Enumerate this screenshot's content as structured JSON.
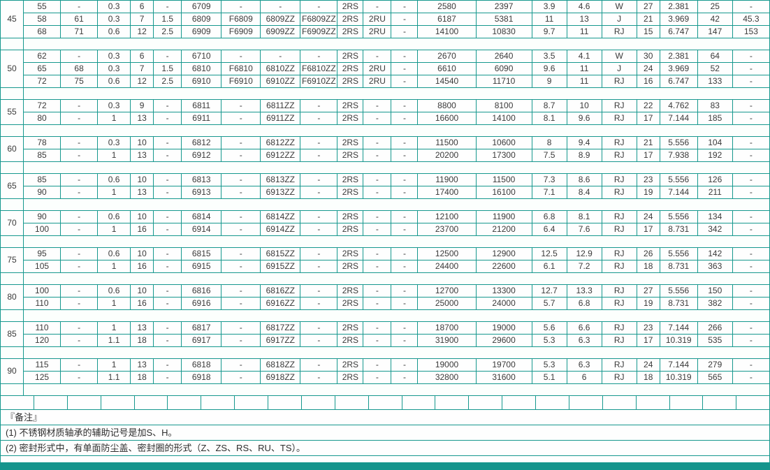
{
  "colors": {
    "border": "#16988e",
    "page_bg": "#14948c",
    "cell_bg": "#fefefe",
    "text": "#3a3a3a"
  },
  "table": {
    "groups": [
      {
        "label": "45",
        "rows": [
          [
            "55",
            "-",
            "0.3",
            "6",
            "-",
            "6709",
            "-",
            "-",
            "-",
            "2RS",
            "-",
            "-",
            "2580",
            "2397",
            "3.9",
            "4.6",
            "W",
            "27",
            "2.381",
            "25",
            "-"
          ],
          [
            "58",
            "61",
            "0.3",
            "7",
            "1.5",
            "6809",
            "F6809",
            "6809ZZ",
            "F6809ZZ",
            "2RS",
            "2RU",
            "-",
            "6187",
            "5381",
            "11",
            "13",
            "J",
            "21",
            "3.969",
            "42",
            "45.3"
          ],
          [
            "68",
            "71",
            "0.6",
            "12",
            "2.5",
            "6909",
            "F6909",
            "6909ZZ",
            "F6909ZZ",
            "2RS",
            "2RU",
            "-",
            "14100",
            "10830",
            "9.7",
            "11",
            "RJ",
            "15",
            "6.747",
            "147",
            "153"
          ]
        ]
      },
      {
        "label": "50",
        "rows": [
          [
            "62",
            "-",
            "0.3",
            "6",
            "-",
            "6710",
            "-",
            "-",
            "-",
            "2RS",
            "-",
            "-",
            "2670",
            "2640",
            "3.5",
            "4.1",
            "W",
            "30",
            "2.381",
            "64",
            "-"
          ],
          [
            "65",
            "68",
            "0.3",
            "7",
            "1.5",
            "6810",
            "F6810",
            "6810ZZ",
            "F6810ZZ",
            "2RS",
            "2RU",
            "-",
            "6610",
            "6090",
            "9.6",
            "11",
            "J",
            "24",
            "3.969",
            "52",
            "-"
          ],
          [
            "72",
            "75",
            "0.6",
            "12",
            "2.5",
            "6910",
            "F6910",
            "6910ZZ",
            "F6910ZZ",
            "2RS",
            "2RU",
            "-",
            "14540",
            "11710",
            "9",
            "11",
            "RJ",
            "16",
            "6.747",
            "133",
            "-"
          ]
        ]
      },
      {
        "label": "55",
        "rows": [
          [
            "72",
            "-",
            "0.3",
            "9",
            "-",
            "6811",
            "-",
            "6811ZZ",
            "-",
            "2RS",
            "-",
            "-",
            "8800",
            "8100",
            "8.7",
            "10",
            "RJ",
            "22",
            "4.762",
            "83",
            "-"
          ],
          [
            "80",
            "-",
            "1",
            "13",
            "-",
            "6911",
            "-",
            "6911ZZ",
            "-",
            "2RS",
            "-",
            "-",
            "16600",
            "14100",
            "8.1",
            "9.6",
            "RJ",
            "17",
            "7.144",
            "185",
            "-"
          ]
        ]
      },
      {
        "label": "60",
        "rows": [
          [
            "78",
            "-",
            "0.3",
            "10",
            "-",
            "6812",
            "-",
            "6812ZZ",
            "-",
            "2RS",
            "-",
            "-",
            "11500",
            "10600",
            "8",
            "9.4",
            "RJ",
            "21",
            "5.556",
            "104",
            "-"
          ],
          [
            "85",
            "-",
            "1",
            "13",
            "-",
            "6912",
            "-",
            "6912ZZ",
            "-",
            "2RS",
            "-",
            "-",
            "20200",
            "17300",
            "7.5",
            "8.9",
            "RJ",
            "17",
            "7.938",
            "192",
            "-"
          ]
        ]
      },
      {
        "label": "65",
        "rows": [
          [
            "85",
            "-",
            "0.6",
            "10",
            "-",
            "6813",
            "-",
            "6813ZZ",
            "-",
            "2RS",
            "-",
            "-",
            "11900",
            "11500",
            "7.3",
            "8.6",
            "RJ",
            "23",
            "5.556",
            "126",
            "-"
          ],
          [
            "90",
            "-",
            "1",
            "13",
            "-",
            "6913",
            "-",
            "6913ZZ",
            "-",
            "2RS",
            "-",
            "-",
            "17400",
            "16100",
            "7.1",
            "8.4",
            "RJ",
            "19",
            "7.144",
            "211",
            "-"
          ]
        ]
      },
      {
        "label": "70",
        "rows": [
          [
            "90",
            "-",
            "0.6",
            "10",
            "-",
            "6814",
            "-",
            "6814ZZ",
            "-",
            "2RS",
            "-",
            "-",
            "12100",
            "11900",
            "6.8",
            "8.1",
            "RJ",
            "24",
            "5.556",
            "134",
            "-"
          ],
          [
            "100",
            "-",
            "1",
            "16",
            "-",
            "6914",
            "-",
            "6914ZZ",
            "-",
            "2RS",
            "-",
            "-",
            "23700",
            "21200",
            "6.4",
            "7.6",
            "RJ",
            "17",
            "8.731",
            "342",
            "-"
          ]
        ]
      },
      {
        "label": "75",
        "rows": [
          [
            "95",
            "-",
            "0.6",
            "10",
            "-",
            "6815",
            "-",
            "6815ZZ",
            "-",
            "2RS",
            "-",
            "-",
            "12500",
            "12900",
            "12.5",
            "12.9",
            "RJ",
            "26",
            "5.556",
            "142",
            "-"
          ],
          [
            "105",
            "-",
            "1",
            "16",
            "-",
            "6915",
            "-",
            "6915ZZ",
            "-",
            "2RS",
            "-",
            "-",
            "24400",
            "22600",
            "6.1",
            "7.2",
            "RJ",
            "18",
            "8.731",
            "363",
            "-"
          ]
        ]
      },
      {
        "label": "80",
        "rows": [
          [
            "100",
            "-",
            "0.6",
            "10",
            "-",
            "6816",
            "-",
            "6816ZZ",
            "-",
            "2RS",
            "-",
            "-",
            "12700",
            "13300",
            "12.7",
            "13.3",
            "RJ",
            "27",
            "5.556",
            "150",
            "-"
          ],
          [
            "110",
            "-",
            "1",
            "16",
            "-",
            "6916",
            "-",
            "6916ZZ",
            "-",
            "2RS",
            "-",
            "-",
            "25000",
            "24000",
            "5.7",
            "6.8",
            "RJ",
            "19",
            "8.731",
            "382",
            "-"
          ]
        ]
      },
      {
        "label": "85",
        "rows": [
          [
            "110",
            "-",
            "1",
            "13",
            "-",
            "6817",
            "-",
            "6817ZZ",
            "-",
            "2RS",
            "-",
            "-",
            "18700",
            "19000",
            "5.6",
            "6.6",
            "RJ",
            "23",
            "7.144",
            "266",
            "-"
          ],
          [
            "120",
            "-",
            "1.1",
            "18",
            "-",
            "6917",
            "-",
            "6917ZZ",
            "-",
            "2RS",
            "-",
            "-",
            "31900",
            "29600",
            "5.3",
            "6.3",
            "RJ",
            "17",
            "10.319",
            "535",
            "-"
          ]
        ]
      },
      {
        "label": "90",
        "rows": [
          [
            "115",
            "-",
            "1",
            "13",
            "-",
            "6818",
            "-",
            "6818ZZ",
            "-",
            "2RS",
            "-",
            "-",
            "19000",
            "19700",
            "5.3",
            "6.3",
            "RJ",
            "24",
            "7.144",
            "279",
            "-"
          ],
          [
            "125",
            "-",
            "1.1",
            "18",
            "-",
            "6918",
            "-",
            "6918ZZ",
            "-",
            "2RS",
            "-",
            "-",
            "32800",
            "31600",
            "5.1",
            "6",
            "RJ",
            "18",
            "10.319",
            "565",
            "-"
          ]
        ]
      }
    ]
  },
  "empty_grid": {
    "cells": 23
  },
  "notes": {
    "title": "『备注』",
    "items": [
      "(1) 不锈钢材质轴承的辅助记号是加S、H。",
      "(2) 密封形式中，有单面防尘盖、密封圈的形式（Z、ZS、RS、RU、TS）。"
    ]
  }
}
